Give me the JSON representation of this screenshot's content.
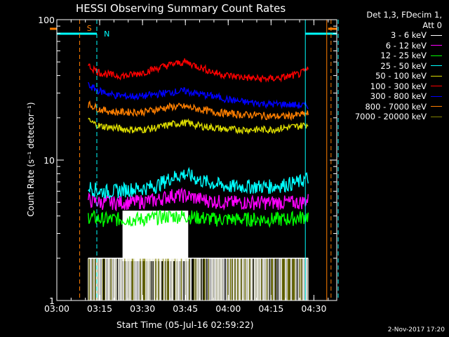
{
  "chart_data": {
    "type": "line",
    "title": "HESSI Observing Summary Count Rates",
    "xlabel": "Start Time (05-Jul-16 02:59:22)",
    "ylabel": "Count Rate (s⁻¹ detector⁻¹)",
    "yscale": "log",
    "ylim": [
      1,
      100
    ],
    "xlim": [
      "03:00",
      "04:38"
    ],
    "xticks": [
      "03:00",
      "03:15",
      "03:30",
      "03:45",
      "04:00",
      "04:15",
      "04:30"
    ],
    "yticks": [
      "1",
      "10",
      "100"
    ],
    "x_times": [
      "03:11",
      "03:15",
      "03:20",
      "03:25",
      "03:30",
      "03:35",
      "03:40",
      "03:45",
      "03:50",
      "03:55",
      "04:00",
      "04:05",
      "04:10",
      "04:15",
      "04:20",
      "04:25",
      "04:28"
    ],
    "series": [
      {
        "name": "3 - 6 keV",
        "color": "#ffffff",
        "values": [
          1.5,
          1.5,
          1.5,
          1.5,
          1.5,
          1.5,
          1.5,
          1.5,
          1.5,
          1.5,
          1.5,
          1.5,
          1.5,
          1.5,
          1.5,
          1.5,
          1.5
        ]
      },
      {
        "name": "6 - 12 keV",
        "color": "#ff00ff",
        "values": [
          5.2,
          5.0,
          5.0,
          5.0,
          5.1,
          5.2,
          5.6,
          5.6,
          5.3,
          5.1,
          5.0,
          5.0,
          5.0,
          5.0,
          5.0,
          5.0,
          5.2
        ]
      },
      {
        "name": "12 - 25 keV",
        "color": "#00ff00",
        "values": [
          4.0,
          3.8,
          3.8,
          3.8,
          3.8,
          3.9,
          4.0,
          4.0,
          3.9,
          3.8,
          3.8,
          3.8,
          3.8,
          3.8,
          3.8,
          3.9,
          4.0
        ]
      },
      {
        "name": "25 - 50 keV",
        "color": "#00ffff",
        "values": [
          6.5,
          6.0,
          6.0,
          6.2,
          6.3,
          6.6,
          7.5,
          8.0,
          7.2,
          6.8,
          6.5,
          6.5,
          6.5,
          6.5,
          6.7,
          7.0,
          7.5
        ]
      },
      {
        "name": "50 - 100 keV",
        "color": "#dddd00",
        "values": [
          19,
          17.5,
          17,
          16.5,
          16.5,
          17,
          18,
          18.5,
          17.5,
          17,
          16.5,
          16.5,
          16.5,
          16.5,
          17,
          17.5,
          18
        ]
      },
      {
        "name": "100 - 300 keV",
        "color": "#ff0000",
        "values": [
          47,
          42,
          40,
          40,
          42,
          45,
          48,
          50,
          46,
          42,
          40,
          39,
          38,
          38,
          39,
          41,
          44
        ]
      },
      {
        "name": "300 - 800 keV",
        "color": "#0000ff",
        "values": [
          34,
          31,
          29,
          28.5,
          28.5,
          29.5,
          30.5,
          31,
          29.5,
          28.5,
          27,
          26,
          25.5,
          25,
          25,
          24.5,
          24.5
        ]
      },
      {
        "name": "800 - 7000 keV",
        "color": "#ff7f00",
        "values": [
          25,
          23,
          22,
          22,
          22,
          23,
          24,
          24,
          23,
          22,
          21.5,
          21,
          21,
          20.5,
          20.5,
          21,
          21.5
        ]
      },
      {
        "name": "7000 - 20000 keV",
        "color": "#808000",
        "values": [
          1.5,
          1.5,
          1.5,
          1.5,
          1.5,
          1.5,
          1.5,
          1.5,
          1.5,
          1.5,
          1.5,
          1.5,
          1.5,
          1.5,
          1.5,
          1.5,
          1.5
        ]
      }
    ],
    "flags": [
      {
        "label": "S",
        "color": "#ff7f00"
      },
      {
        "label": "N",
        "color": "#00ffff"
      }
    ],
    "legend": {
      "header": [
        "Det 1,3, FDecim 1,",
        "Att 0"
      ],
      "placement": "right, outside plot"
    },
    "grid": false
  },
  "footer": {
    "timestamp": "2-Nov-2017 17:20"
  }
}
